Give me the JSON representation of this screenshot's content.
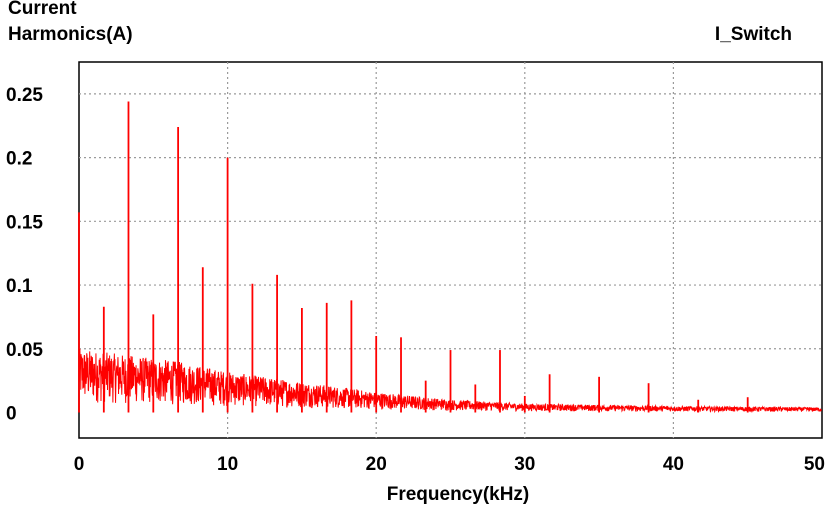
{
  "chart_data": {
    "type": "line",
    "ylabel_lines": [
      "Current",
      "Harmonics(A)"
    ],
    "xlabel": "Frequency(kHz)",
    "x_ticks": [
      "0",
      "10",
      "20",
      "30",
      "40",
      "50"
    ],
    "y_ticks": [
      "0",
      "0.05",
      "0.1",
      "0.15",
      "0.2",
      "0.25"
    ],
    "xlim": [
      0,
      50
    ],
    "ylim": [
      -0.02,
      0.275
    ],
    "grid": true,
    "legend_position": "top-right",
    "series": [
      {
        "name": "I_Switch",
        "color": "#ff0000",
        "peaks": [
          {
            "x": 0.0,
            "y": 0.157
          },
          {
            "x": 1.67,
            "y": 0.083
          },
          {
            "x": 3.33,
            "y": 0.244
          },
          {
            "x": 5.0,
            "y": 0.077
          },
          {
            "x": 6.67,
            "y": 0.224
          },
          {
            "x": 8.33,
            "y": 0.114
          },
          {
            "x": 10.0,
            "y": 0.2
          },
          {
            "x": 11.67,
            "y": 0.101
          },
          {
            "x": 13.33,
            "y": 0.108
          },
          {
            "x": 15.0,
            "y": 0.082
          },
          {
            "x": 16.67,
            "y": 0.086
          },
          {
            "x": 18.33,
            "y": 0.088
          },
          {
            "x": 20.0,
            "y": 0.06
          },
          {
            "x": 21.67,
            "y": 0.059
          },
          {
            "x": 23.33,
            "y": 0.025
          },
          {
            "x": 25.0,
            "y": 0.049
          },
          {
            "x": 26.67,
            "y": 0.022
          },
          {
            "x": 28.33,
            "y": 0.049
          },
          {
            "x": 30.0,
            "y": 0.013
          },
          {
            "x": 31.67,
            "y": 0.03
          },
          {
            "x": 35.0,
            "y": 0.028
          },
          {
            "x": 38.33,
            "y": 0.023
          },
          {
            "x": 41.67,
            "y": 0.01
          },
          {
            "x": 45.0,
            "y": 0.012
          }
        ],
        "noise_floor": [
          {
            "x": 0,
            "y": 0.05
          },
          {
            "x": 3.3,
            "y": 0.045
          },
          {
            "x": 6.7,
            "y": 0.04
          },
          {
            "x": 10,
            "y": 0.032
          },
          {
            "x": 15,
            "y": 0.024
          },
          {
            "x": 20,
            "y": 0.016
          },
          {
            "x": 25,
            "y": 0.01
          },
          {
            "x": 30,
            "y": 0.007
          },
          {
            "x": 40,
            "y": 0.005
          },
          {
            "x": 50,
            "y": 0.004
          }
        ]
      }
    ]
  }
}
